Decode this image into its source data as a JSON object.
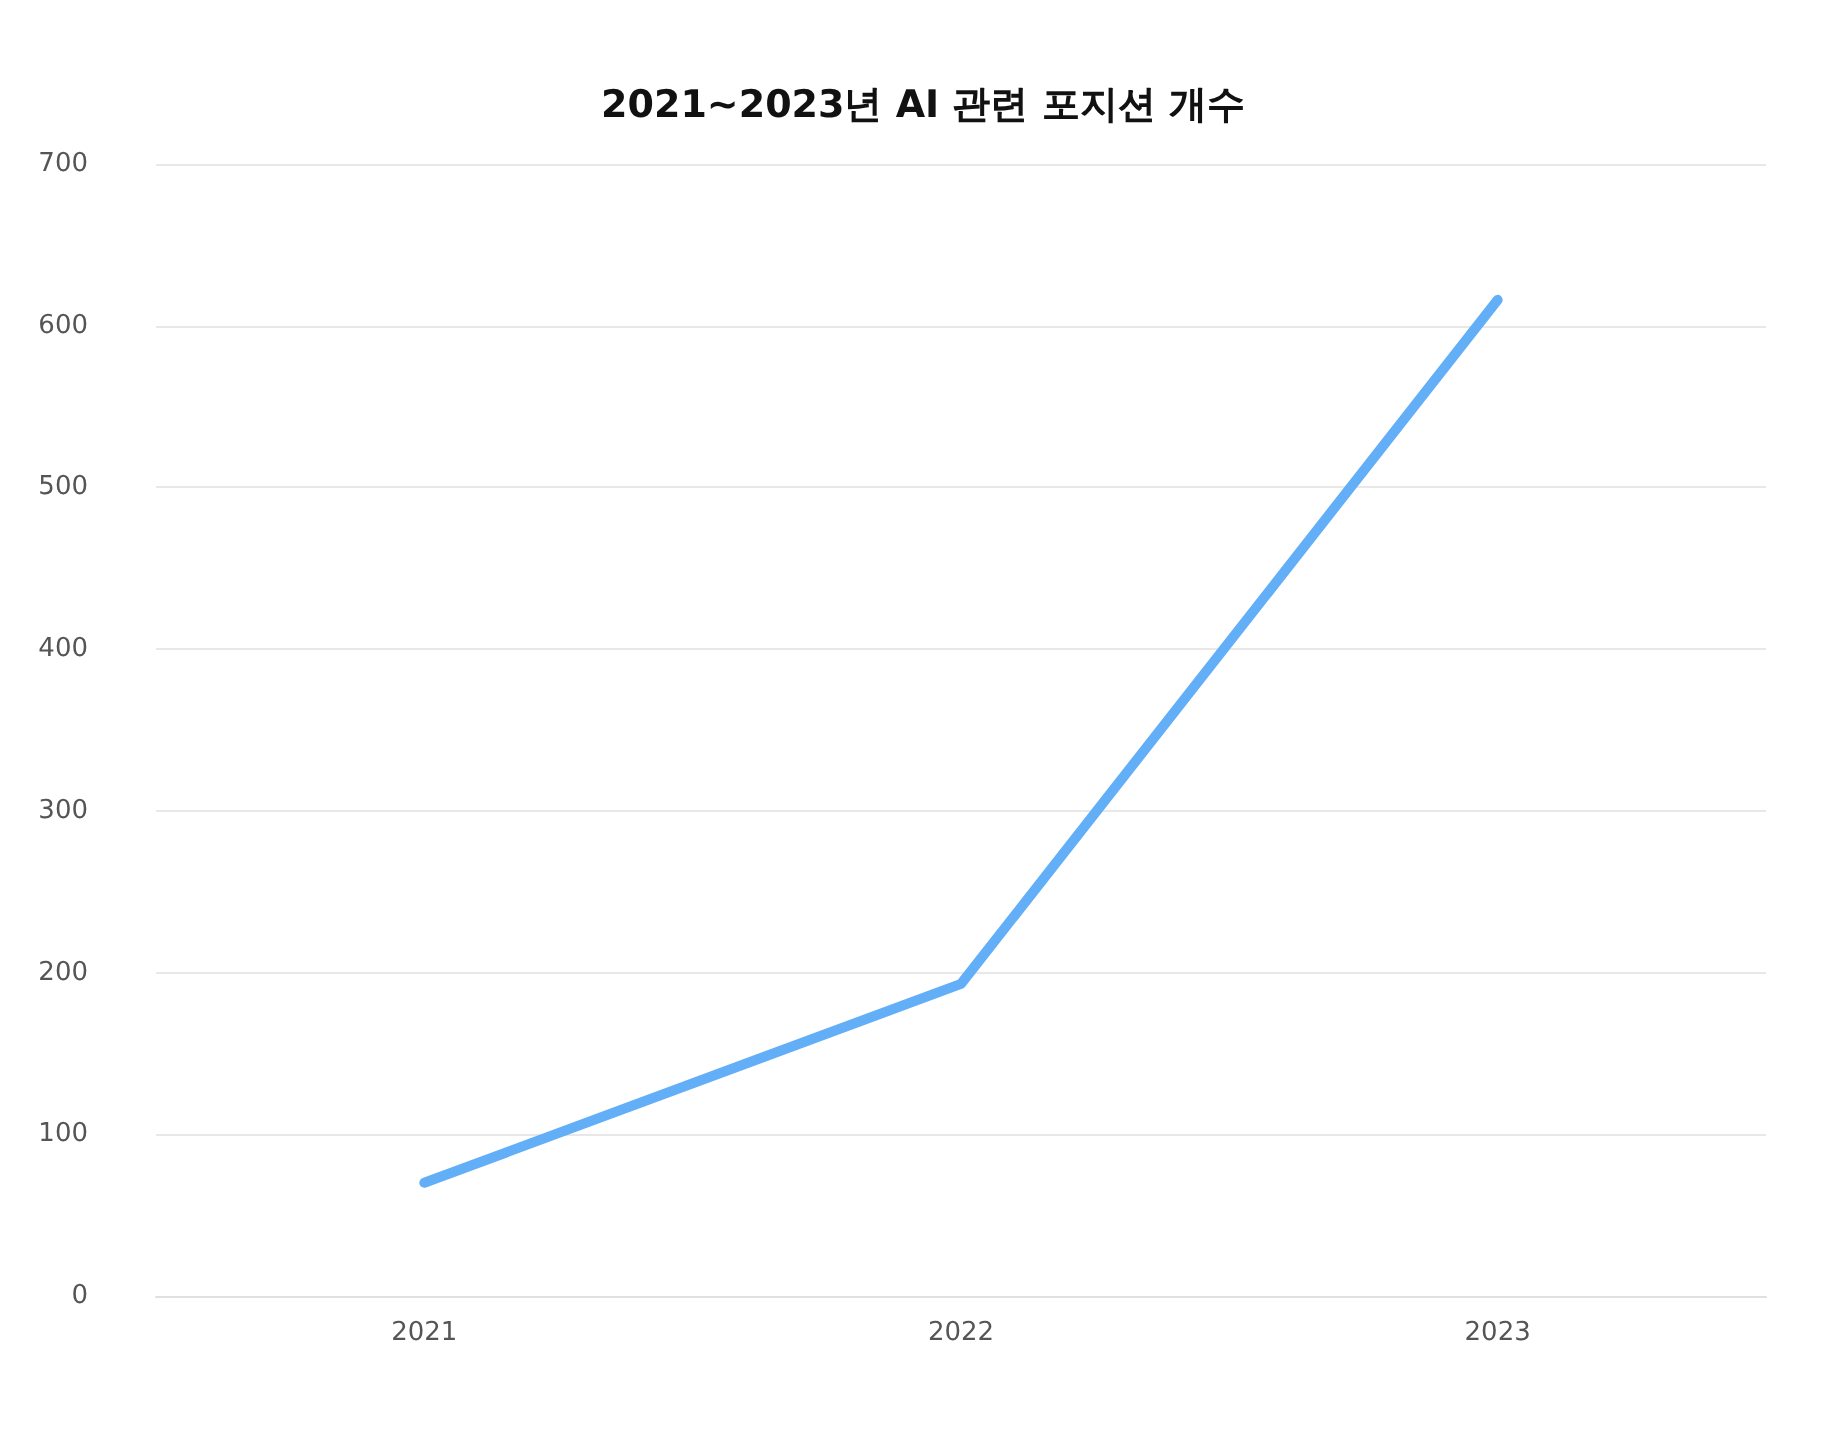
{
  "chart_data": {
    "type": "line",
    "title": "2021~2023년 AI 관련 포지션 개수",
    "categories": [
      "2021",
      "2022",
      "2023"
    ],
    "series": [
      {
        "color": "#62aef7",
        "values": [
          70,
          193,
          616
        ]
      }
    ],
    "ylim": [
      0,
      700
    ],
    "yticks": [
      0,
      100,
      200,
      300,
      400,
      500,
      600,
      700
    ],
    "grid": "y",
    "marker": "none",
    "line_style": "solid"
  }
}
